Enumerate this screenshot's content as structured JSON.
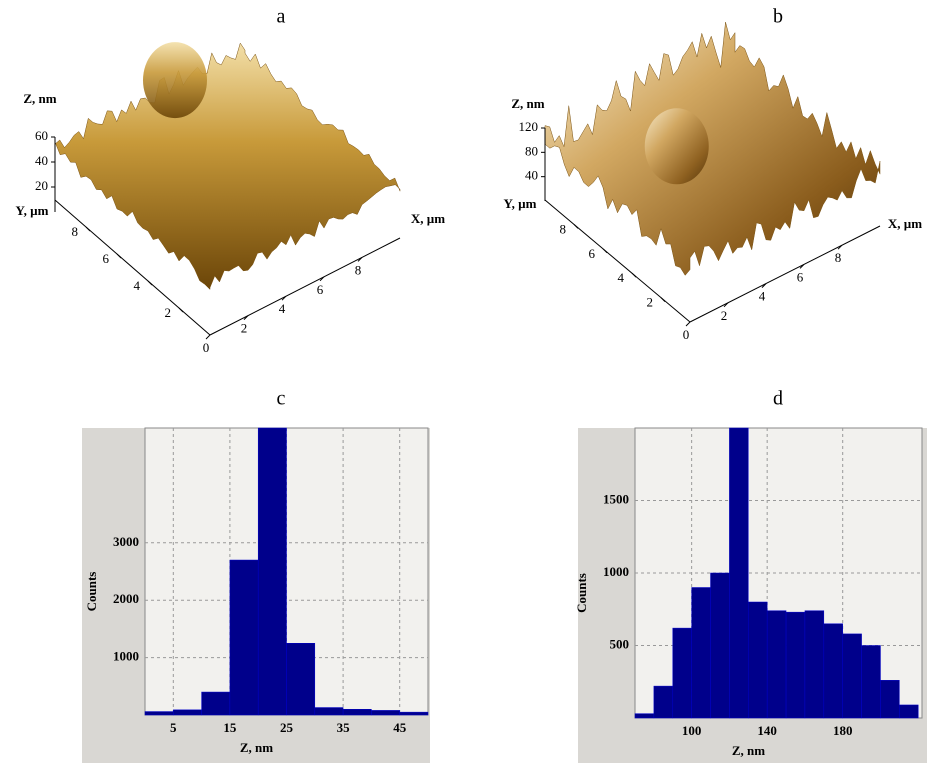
{
  "chart_data": [
    {
      "type": "surface3d",
      "title": "a",
      "xlabel": "X, µm",
      "ylabel": "Y, µm",
      "zlabel": "Z, nm",
      "xlim": [
        0,
        10
      ],
      "ylim": [
        0,
        10
      ],
      "zlim": [
        0,
        60
      ],
      "xticks": [
        0,
        2,
        4,
        6,
        8
      ],
      "yticks": [
        2,
        4,
        6,
        8
      ],
      "zticks": [
        20,
        40,
        60
      ]
    },
    {
      "type": "surface3d",
      "title": "b",
      "xlabel": "X, µm",
      "ylabel": "Y, µm",
      "zlabel": "Z, nm",
      "xlim": [
        0,
        10
      ],
      "ylim": [
        0,
        10
      ],
      "zlim": [
        0,
        120
      ],
      "xticks": [
        0,
        2,
        4,
        6,
        8
      ],
      "yticks": [
        2,
        4,
        6,
        8
      ],
      "zticks": [
        40,
        80,
        120
      ]
    },
    {
      "type": "histogram",
      "title": "c",
      "xlabel": "Z, nm",
      "ylabel": "Counts",
      "color": "#00008b",
      "grid": true,
      "bins": [
        0,
        5,
        10,
        15,
        20,
        25,
        30,
        35,
        40,
        45,
        50
      ],
      "values": [
        60,
        90,
        400,
        2700,
        5000,
        1250,
        130,
        100,
        80,
        50
      ],
      "xlim": [
        0,
        50
      ],
      "ylim": [
        0,
        5000
      ],
      "xticks": [
        5,
        15,
        25,
        35,
        45
      ],
      "yticks": [
        1000,
        2000,
        3000
      ]
    },
    {
      "type": "histogram",
      "title": "d",
      "xlabel": "Z, nm",
      "ylabel": "Counts",
      "color": "#00008b",
      "grid": true,
      "bins": [
        70,
        80,
        90,
        100,
        110,
        120,
        130,
        140,
        150,
        160,
        170,
        180,
        190,
        200,
        210,
        220
      ],
      "values": [
        30,
        220,
        620,
        900,
        1000,
        2000,
        800,
        740,
        730,
        740,
        650,
        580,
        500,
        260,
        90
      ],
      "xlim": [
        70,
        222
      ],
      "ylim": [
        0,
        2000
      ],
      "xticks": [
        100,
        140,
        180
      ],
      "yticks": [
        500,
        1000,
        1500
      ]
    }
  ]
}
